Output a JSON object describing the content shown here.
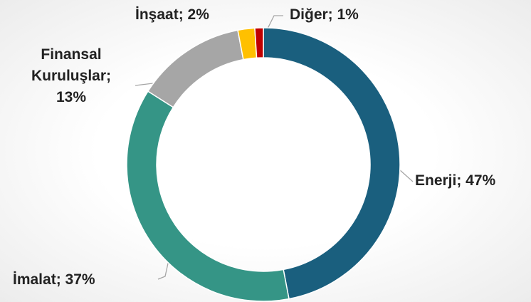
{
  "chart_data": {
    "type": "pie",
    "values": [
      47,
      37,
      13,
      2,
      1
    ],
    "value_labels": [
      "Enerji; 47%",
      "İmalat; 37%",
      "Finansal Kuruluşlar; 13%",
      "İnşaat; 2%",
      "Diğer; 1%"
    ],
    "colors": [
      "#1a5f7e",
      "#359586",
      "#a6a6a6",
      "#ffc000",
      "#c00000"
    ],
    "donut": true
  }
}
